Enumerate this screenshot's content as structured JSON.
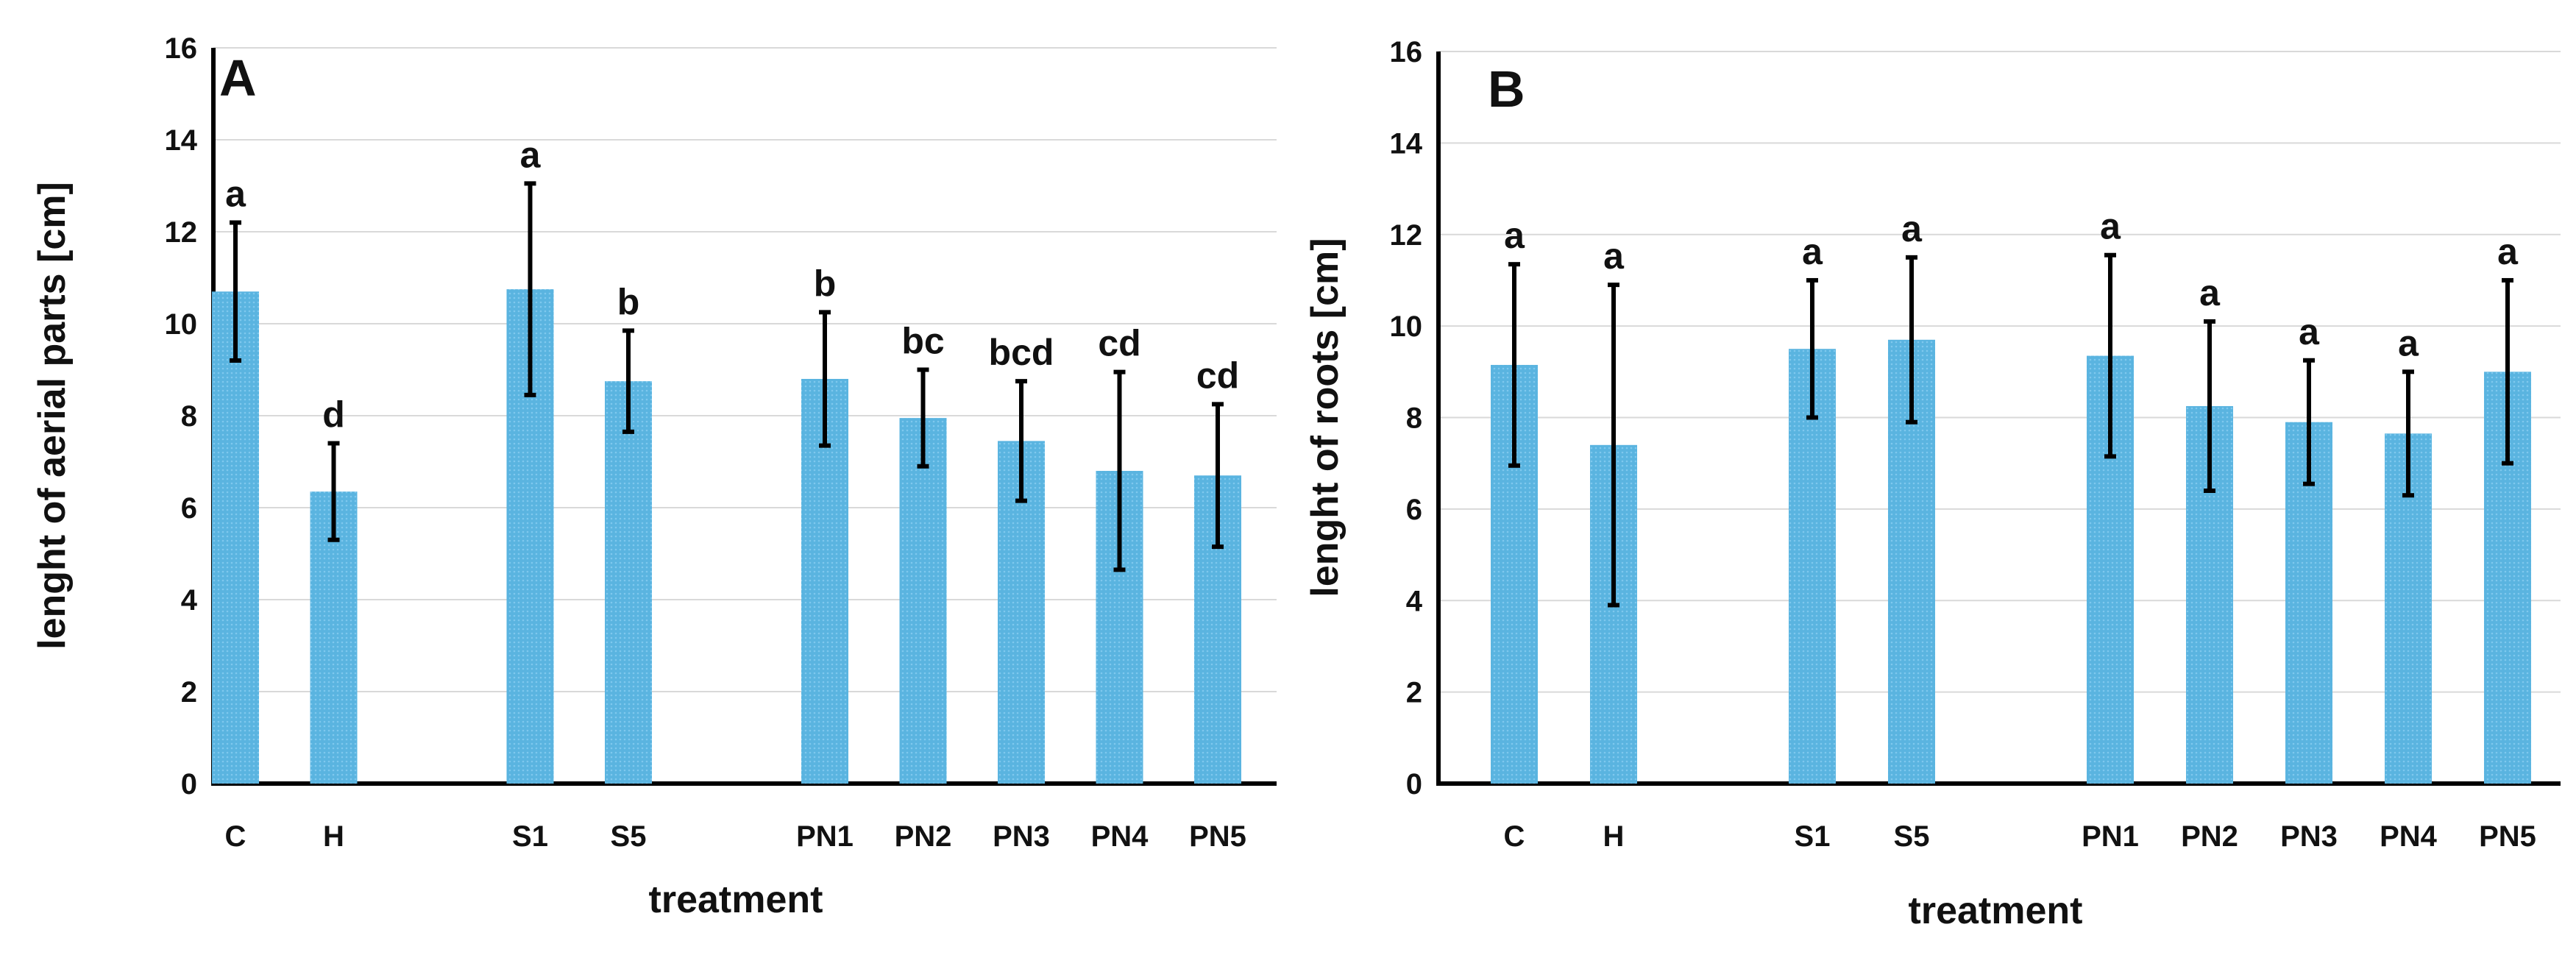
{
  "figure": {
    "bar_color": "#5ab4e0",
    "bar_pattern_color": "#7fc8ee",
    "errorbar_color": "#000000",
    "grid_color": "#d9d9d9"
  },
  "chart_data": [
    {
      "type": "bar",
      "panel_label": "A",
      "xlabel": "treatment",
      "ylabel": "lenght of aerial parts [cm]",
      "ylim": [
        0,
        16
      ],
      "yticks": [
        "0",
        "2",
        "4",
        "6",
        "8",
        "10",
        "12",
        "14",
        "16"
      ],
      "categories": [
        "C",
        "H",
        "",
        "S1",
        "S5",
        "",
        "PN1",
        "PN2",
        "PN3",
        "PN4",
        "PN5"
      ],
      "values": [
        10.7,
        6.35,
        null,
        10.75,
        8.75,
        null,
        8.8,
        7.95,
        7.45,
        6.8,
        6.7
      ],
      "errors": [
        1.5,
        1.05,
        null,
        2.3,
        1.1,
        null,
        1.45,
        1.05,
        1.3,
        2.15,
        1.55
      ],
      "significance": [
        "a",
        "d",
        "",
        "a",
        "b",
        "",
        "b",
        "bc",
        "bcd",
        "cd",
        "cd"
      ]
    },
    {
      "type": "bar",
      "panel_label": "B",
      "xlabel": "treatment",
      "ylabel": "lenght of roots [cm]",
      "ylim": [
        0,
        16
      ],
      "yticks": [
        "0",
        "2",
        "4",
        "6",
        "8",
        "10",
        "12",
        "14",
        "16"
      ],
      "categories": [
        "C",
        "H",
        "",
        "S1",
        "S5",
        "",
        "PN1",
        "PN2",
        "PN3",
        "PN4",
        "PN5"
      ],
      "values": [
        9.15,
        7.4,
        null,
        9.5,
        9.7,
        null,
        9.35,
        8.25,
        7.9,
        7.65,
        9.0
      ],
      "errors": [
        2.2,
        3.5,
        null,
        1.5,
        1.8,
        null,
        2.2,
        1.85,
        1.35,
        1.35,
        2.0
      ],
      "significance": [
        "a",
        "a",
        "",
        "a",
        "a",
        "",
        "a",
        "a",
        "a",
        "a",
        "a"
      ]
    }
  ]
}
